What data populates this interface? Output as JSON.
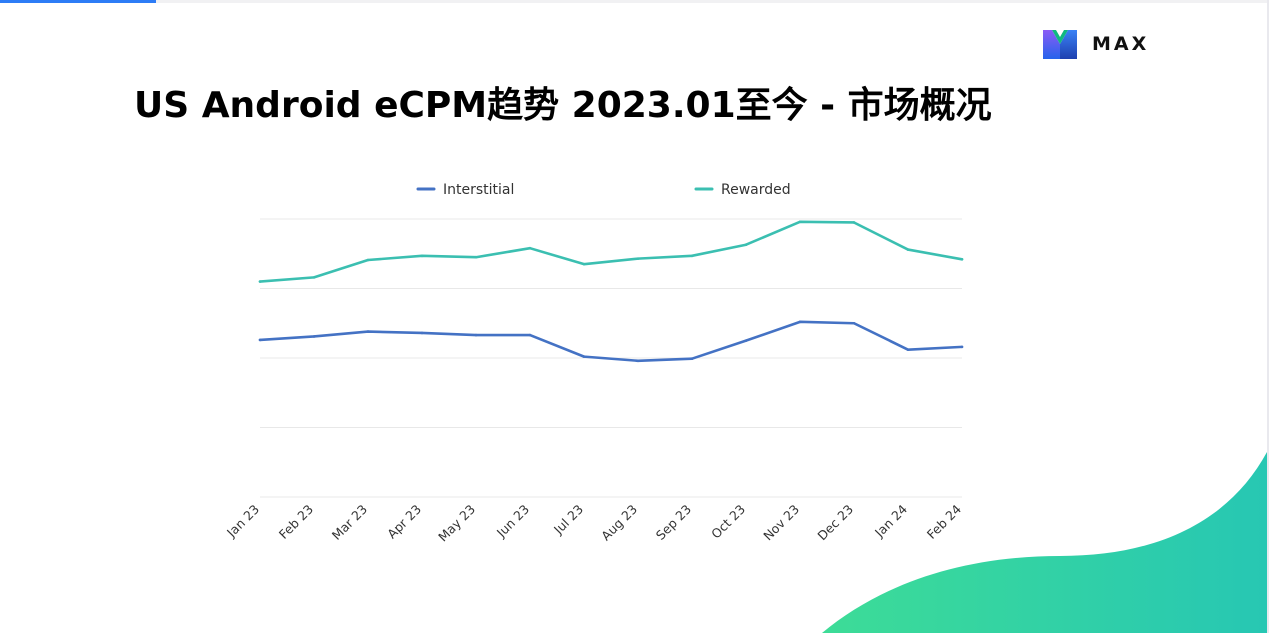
{
  "page": {
    "title": "US Android eCPM趋势 2023.01至今 - 市场概况"
  },
  "brand": {
    "name": "MAX",
    "logo_icon": "max-logo-icon"
  },
  "colors": {
    "interstitial": "#4472c4",
    "rewarded": "#3bbfb1",
    "accent_progress": "#2d7cf6",
    "gridline": "#e8e8e8",
    "wave_start": "#3ddc97",
    "wave_end": "#27c7b3"
  },
  "chart_data": {
    "type": "line",
    "title": "",
    "xlabel": "",
    "ylabel": "",
    "categories": [
      "Jan 23",
      "Feb 23",
      "Mar 23",
      "Apr 23",
      "May 23",
      "Jun 23",
      "Jul 23",
      "Aug 23",
      "Sep 23",
      "Oct 23",
      "Nov 23",
      "Dec 23",
      "Jan 24",
      "Feb 24"
    ],
    "ylim": [
      0,
      4
    ],
    "y_gridlines": [
      0,
      1,
      2,
      3,
      4
    ],
    "y_tick_labels_shown": false,
    "grid": true,
    "legend_position": "top",
    "series": [
      {
        "name": "Interstitial",
        "color": "#4472c4",
        "values": [
          2.26,
          2.31,
          2.38,
          2.36,
          2.33,
          2.33,
          2.02,
          1.96,
          1.99,
          2.25,
          2.52,
          2.5,
          2.12,
          2.16
        ]
      },
      {
        "name": "Rewarded",
        "color": "#3bbfb1",
        "values": [
          3.1,
          3.16,
          3.41,
          3.47,
          3.45,
          3.58,
          3.35,
          3.43,
          3.47,
          3.63,
          3.96,
          3.95,
          3.56,
          3.42
        ]
      }
    ]
  }
}
